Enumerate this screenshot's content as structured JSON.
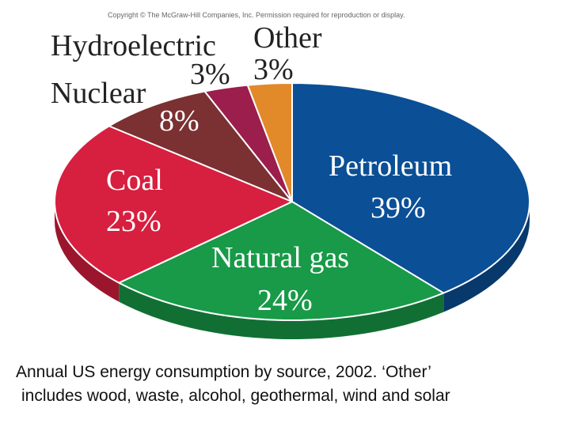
{
  "copyright": "Copyright © The McGraw-Hill Companies, Inc. Permission required for reproduction or display.",
  "caption": {
    "line1": "Annual US energy consumption by source, 2002.  ‘Other’",
    "line2": "includes wood, waste, alcohol, geothermal, wind and solar"
  },
  "chart_data": {
    "type": "pie",
    "title": "",
    "slices": [
      {
        "label": "Petroleum",
        "value": 39,
        "value_label": "39%",
        "color": "#0b4f96"
      },
      {
        "label": "Natural gas",
        "value": 24,
        "value_label": "24%",
        "color": "#189a48"
      },
      {
        "label": "Coal",
        "value": 23,
        "value_label": "23%",
        "color": "#d71f3f"
      },
      {
        "label": "Nuclear",
        "value": 8,
        "value_label": "8%",
        "color": "#7b3032"
      },
      {
        "label": "Hydroelectric",
        "value": 3,
        "value_label": "3%",
        "color": "#9b1e4d"
      },
      {
        "label": "Other",
        "value": 3,
        "value_label": "3%",
        "color": "#e2892a"
      }
    ],
    "style": "3d-tilted"
  }
}
